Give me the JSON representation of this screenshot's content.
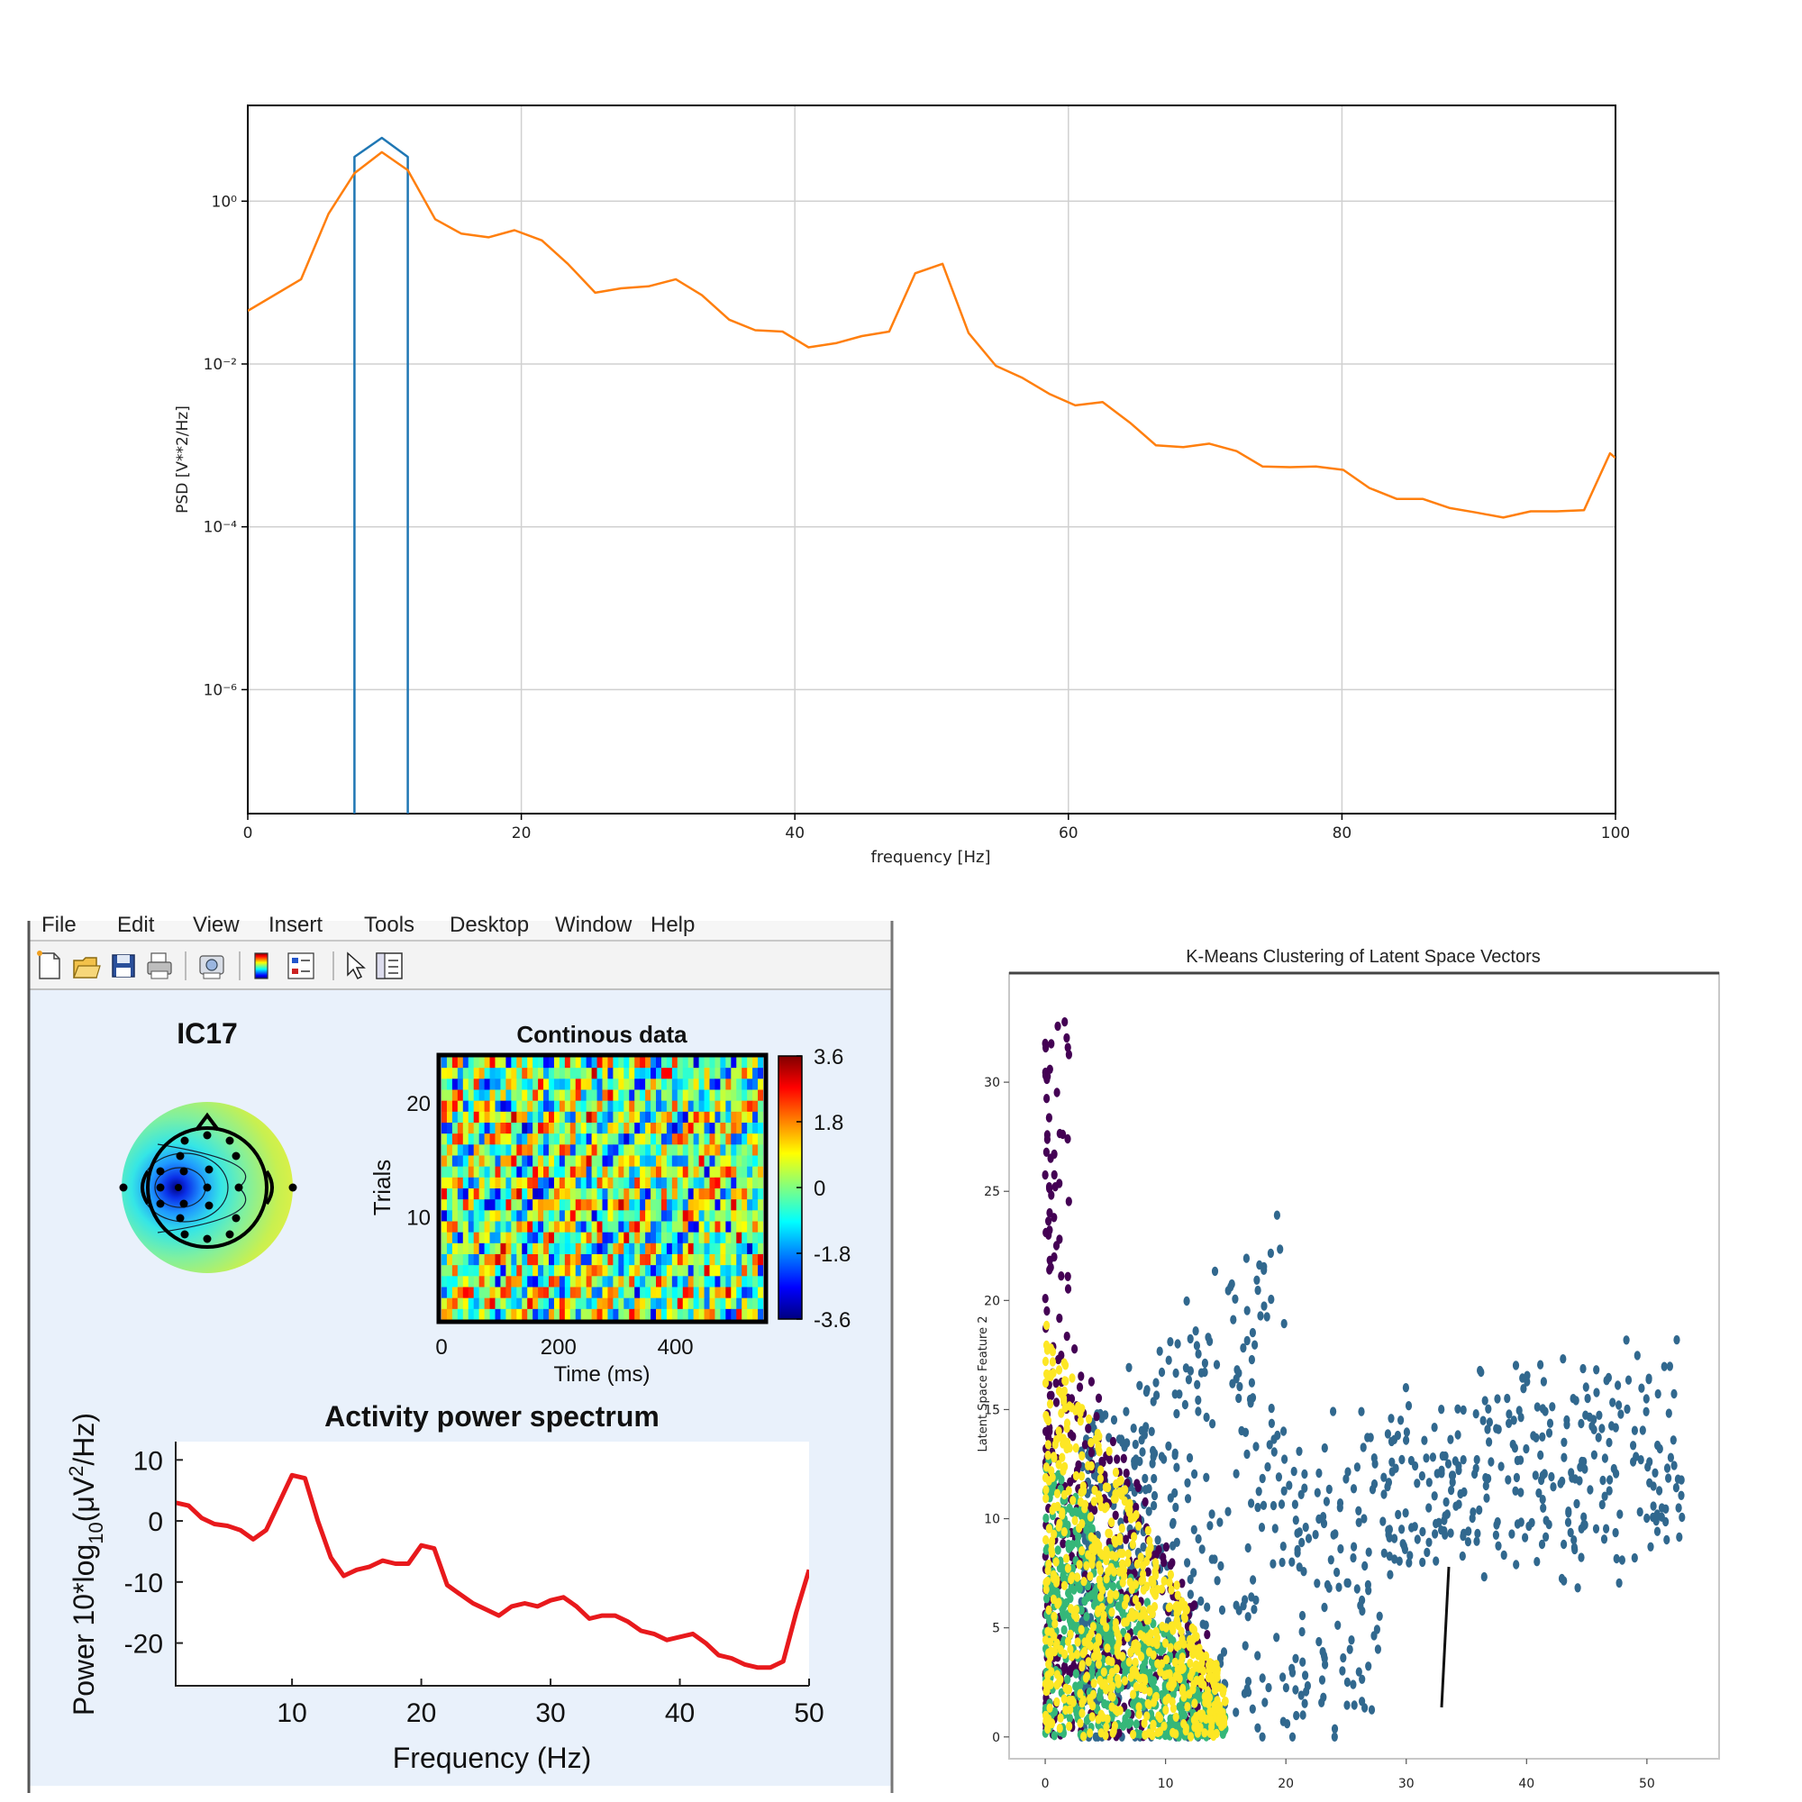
{
  "chart_data": [
    {
      "type": "line",
      "title": "",
      "xlabel": "frequency [Hz]",
      "ylabel": "PSD [V**2/Hz]",
      "yscale": "log",
      "xlim": [
        0,
        100
      ],
      "ylim": [
        3e-08,
        15
      ],
      "xticks": [
        0,
        20,
        40,
        60,
        80,
        100
      ],
      "xtick_labels": [
        "0",
        "20",
        "40",
        "60",
        "80",
        "100"
      ],
      "yticks": [
        1,
        0.01,
        0.0001,
        1e-06
      ],
      "ytick_labels": [
        "10⁰",
        "10⁻²",
        "10⁻⁴",
        "10⁻⁶"
      ],
      "grid": true,
      "colors": [
        "#1f77b4",
        "#ff7f0e"
      ],
      "series": [
        {
          "x": [
            7.8,
            7.8,
            9.8,
            11.7,
            11.7
          ],
          "y": [
            3e-08,
            3.5,
            6.0,
            3.5,
            3e-08
          ]
        },
        {
          "x": [
            0,
            3.9,
            5.9,
            7.8,
            9.8,
            11.7,
            13.7,
            15.6,
            17.6,
            19.5,
            21.5,
            23.4,
            25.4,
            27.3,
            29.3,
            31.3,
            33.2,
            35.2,
            37.1,
            39.1,
            41.0,
            43.0,
            44.9,
            46.9,
            48.8,
            50.8,
            52.7,
            54.7,
            56.6,
            58.6,
            60.5,
            62.5,
            64.5,
            66.4,
            68.4,
            70.3,
            72.3,
            74.2,
            76.2,
            78.1,
            80.1,
            82.0,
            84.0,
            85.9,
            87.9,
            89.8,
            91.8,
            93.8,
            95.7,
            97.7,
            99.6,
            100
          ],
          "y": [
            0.045,
            0.11,
            0.7,
            2.2,
            4.0,
            2.4,
            0.6,
            0.4,
            0.36,
            0.44,
            0.33,
            0.17,
            0.075,
            0.085,
            0.09,
            0.11,
            0.07,
            0.035,
            0.026,
            0.025,
            0.016,
            0.018,
            0.022,
            0.025,
            0.13,
            0.17,
            0.024,
            0.0095,
            0.0068,
            0.0043,
            0.0031,
            0.0034,
            0.0019,
            0.001,
            0.00095,
            0.00105,
            0.00085,
            0.00055,
            0.00054,
            0.00055,
            0.0005,
            0.0003,
            0.00022,
            0.00022,
            0.00017,
            0.00015,
            0.00013,
            0.000155,
            0.000155,
            0.00016,
            0.0008,
            0.0007
          ]
        }
      ]
    },
    {
      "type": "topoplot",
      "title": "IC17"
    },
    {
      "type": "heatmap",
      "title": "Continous data",
      "xlabel": "Time (ms)",
      "ylabel": "Trials",
      "xlim": [
        0,
        550
      ],
      "ylim": [
        1,
        24
      ],
      "xticks": [
        0,
        200,
        400
      ],
      "yticks": [
        10,
        20
      ],
      "colorbar": {
        "min": -3.6,
        "max": 3.6,
        "ticks": [
          "3.6",
          "1.8",
          "0",
          "-1.8",
          "-3.6"
        ]
      }
    },
    {
      "type": "line",
      "title": "Activity power spectrum",
      "xlabel": "Frequency (Hz)",
      "ylabel_parts": [
        "Power 10*log",
        "10",
        "(μV",
        "2",
        "/Hz)"
      ],
      "xlim": [
        1,
        50
      ],
      "ylim": [
        -27,
        13
      ],
      "xticks": [
        10,
        20,
        30,
        40,
        50
      ],
      "yticks": [
        10,
        0,
        -10,
        -20
      ],
      "color": "#e8191c",
      "x": [
        1,
        2,
        3,
        4,
        5,
        6,
        7,
        8,
        9,
        10,
        11,
        12,
        13,
        14,
        15,
        16,
        17,
        18,
        19,
        20,
        21,
        22,
        23,
        24,
        25,
        26,
        27,
        28,
        29,
        30,
        31,
        32,
        33,
        34,
        35,
        36,
        37,
        38,
        39,
        40,
        41,
        42,
        43,
        44,
        45,
        46,
        47,
        48,
        49,
        50
      ],
      "y": [
        3,
        2.5,
        0.5,
        -0.5,
        -0.8,
        -1.5,
        -3,
        -1.5,
        3,
        7.5,
        7,
        0,
        -6,
        -9,
        -8,
        -7.5,
        -6.5,
        -7,
        -7,
        -4,
        -4.5,
        -10.5,
        -12,
        -13.5,
        -14.5,
        -15.5,
        -14,
        -13.5,
        -14,
        -13,
        -12.5,
        -14,
        -16,
        -15.5,
        -15.5,
        -16.5,
        -18,
        -18.5,
        -19.5,
        -19,
        -18.5,
        -20,
        -22,
        -22.5,
        -23.5,
        -24,
        -24,
        -23,
        -15,
        -8
      ]
    },
    {
      "type": "scatter",
      "title": "K-Means Clustering of Latent Space Vectors",
      "xlabel": "",
      "ylabel": "Latent Space Feature 2",
      "xlim": [
        -3,
        56
      ],
      "ylim": [
        -1,
        35
      ],
      "xticks": [
        0,
        10,
        20,
        30,
        40,
        50
      ],
      "yticks": [
        0,
        5,
        10,
        15,
        20,
        25,
        30
      ],
      "clusters": [
        {
          "color": "#440154",
          "x_range": [
            0,
            14
          ],
          "y_range": [
            0,
            33
          ]
        },
        {
          "color": "#31688e",
          "x_range": [
            3,
            53
          ],
          "y_range": [
            0,
            29
          ]
        },
        {
          "color": "#35b779",
          "x_range": [
            0,
            15
          ],
          "y_range": [
            0,
            14
          ]
        },
        {
          "color": "#fde725",
          "x_range": [
            0,
            15
          ],
          "y_range": [
            0,
            19
          ]
        }
      ]
    }
  ],
  "matlab": {
    "menu": [
      "File",
      "Edit",
      "View",
      "Insert",
      "Tools",
      "Desktop",
      "Window",
      "Help"
    ],
    "toolbar_icons": [
      "new-file-icon",
      "open-folder-icon",
      "save-icon",
      "print-icon",
      "print-preview-icon",
      "colorbar-icon",
      "legend-icon",
      "pointer-icon",
      "property-editor-icon"
    ]
  }
}
